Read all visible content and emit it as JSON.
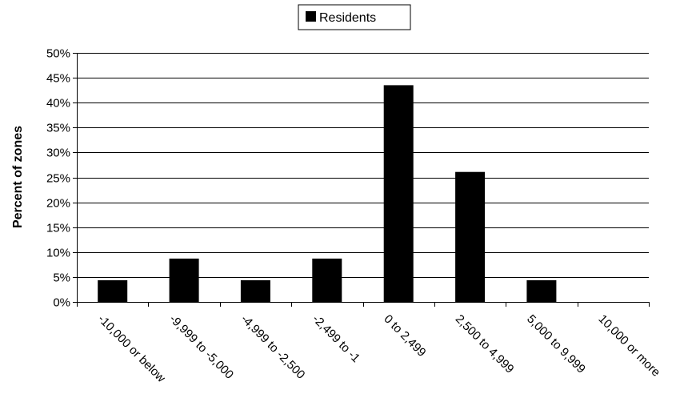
{
  "chart_data": {
    "type": "bar",
    "categories": [
      "-10,000 or below",
      "-9,999 to -5,000",
      "-4,999 to -2,500",
      "-2,499 to -1",
      "0 to 2,499",
      "2,500 to 4,999",
      "5,000 to 9,999",
      "10,000 or more"
    ],
    "series": [
      {
        "name": "Residents",
        "values": [
          4.35,
          8.7,
          4.35,
          8.7,
          43.5,
          26.1,
          4.35,
          0
        ],
        "color": "#000000"
      }
    ],
    "ylabel": "Percent of zones",
    "xlabel": "",
    "title": "",
    "ylim": [
      0,
      50
    ],
    "yticks": [
      0,
      5,
      10,
      15,
      20,
      25,
      30,
      35,
      40,
      45,
      50
    ],
    "ytick_labels": [
      "0%",
      "5%",
      "10%",
      "15%",
      "20%",
      "25%",
      "30%",
      "35%",
      "40%",
      "45%",
      "50%"
    ],
    "grid": "horizontal",
    "legend_position": "top-center"
  }
}
